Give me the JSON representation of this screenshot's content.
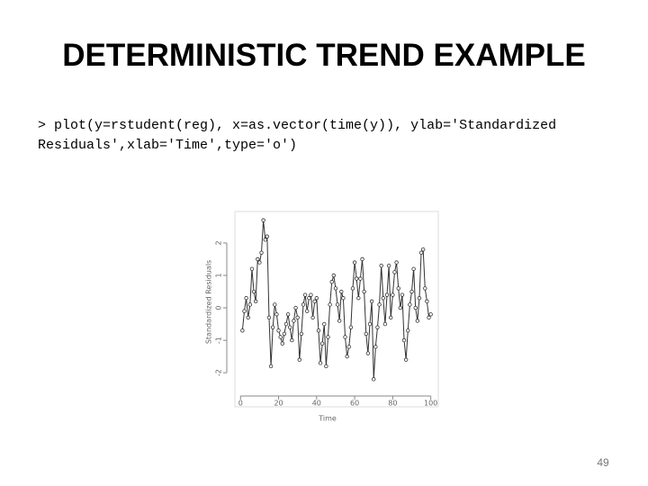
{
  "title": "DETERMINISTIC TREND EXAMPLE",
  "code": [
    "> plot(y=rstudent(reg), x=as.vector(time(y)), ylab='Standardized",
    "Residuals',xlab='Time',type='o')"
  ],
  "page_number": "49",
  "chart_data": {
    "type": "line",
    "markers": true,
    "color": "#333333",
    "xlabel": "Time",
    "ylabel": "Standardized Residuals",
    "x": [
      1,
      2,
      3,
      4,
      5,
      6,
      7,
      8,
      9,
      10,
      11,
      12,
      13,
      14,
      15,
      16,
      17,
      18,
      19,
      20,
      21,
      22,
      23,
      24,
      25,
      26,
      27,
      28,
      29,
      30,
      31,
      32,
      33,
      34,
      35,
      36,
      37,
      38,
      39,
      40,
      41,
      42,
      43,
      44,
      45,
      46,
      47,
      48,
      49,
      50,
      51,
      52,
      53,
      54,
      55,
      56,
      57,
      58,
      59,
      60,
      61,
      62,
      63,
      64,
      65,
      66,
      67,
      68,
      69,
      70,
      71,
      72,
      73,
      74,
      75,
      76,
      77,
      78,
      79,
      80,
      81,
      82,
      83,
      84,
      85,
      86,
      87,
      88,
      89,
      90,
      91,
      92,
      93,
      94,
      95,
      96,
      97,
      98,
      99,
      100
    ],
    "values": [
      -0.7,
      -0.1,
      0.3,
      -0.3,
      0.1,
      1.2,
      0.5,
      0.2,
      1.5,
      1.4,
      1.7,
      2.7,
      2.1,
      2.2,
      -0.3,
      -1.8,
      -0.6,
      0.1,
      -0.2,
      -0.7,
      -0.9,
      -1.1,
      -0.8,
      -0.5,
      -0.2,
      -0.6,
      -1.0,
      -0.4,
      0.0,
      -0.3,
      -1.6,
      -0.8,
      0.1,
      0.4,
      -0.1,
      0.3,
      0.4,
      -0.3,
      0.2,
      0.3,
      -0.7,
      -1.7,
      -1.1,
      -0.5,
      -1.8,
      -0.9,
      0.1,
      0.8,
      1.0,
      0.6,
      0.1,
      -0.4,
      0.5,
      0.3,
      -0.9,
      -1.5,
      -1.2,
      -0.6,
      0.6,
      1.4,
      0.9,
      0.3,
      0.9,
      1.5,
      0.5,
      -0.8,
      -1.4,
      -0.5,
      0.2,
      -2.2,
      -1.2,
      -0.6,
      0.1,
      1.3,
      0.3,
      -0.5,
      0.4,
      1.3,
      -0.3,
      0.4,
      1.1,
      1.4,
      0.6,
      0.0,
      0.4,
      -1.0,
      -1.6,
      -0.7,
      0.1,
      0.5,
      1.2,
      0.0,
      -0.4,
      0.3,
      1.7,
      1.8,
      0.6,
      0.2,
      -0.3,
      -0.2
    ],
    "xlim": [
      -2.96,
      103.96
    ],
    "ylim": [
      -3.05,
      2.97
    ],
    "xticks": [
      0,
      20,
      40,
      60,
      80,
      100
    ],
    "yticks": [
      -2,
      -1,
      0,
      1,
      2
    ]
  }
}
